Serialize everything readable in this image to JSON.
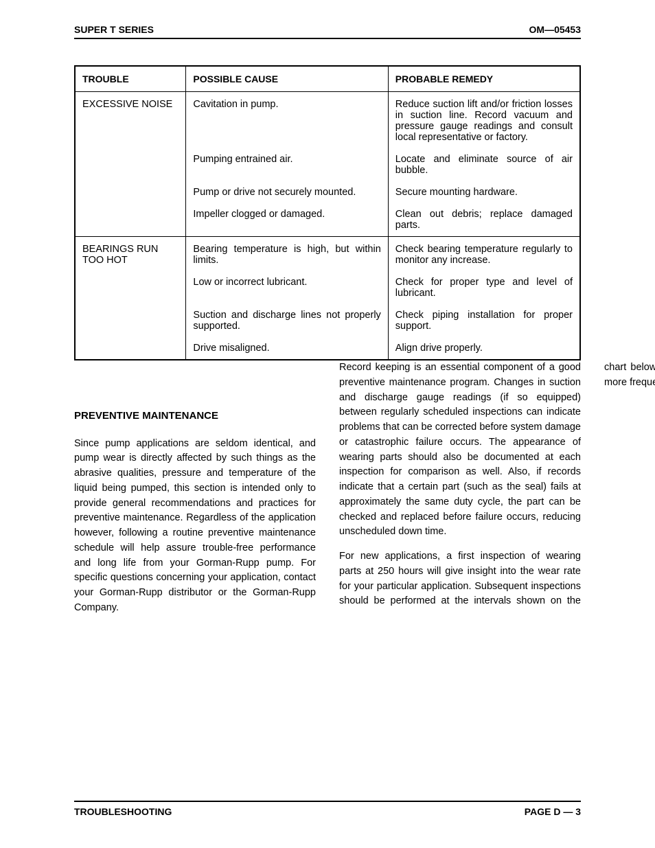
{
  "header": {
    "left": "SUPER T SERIES",
    "right": "OM—05453"
  },
  "table": {
    "cols": {
      "trouble": "TROUBLE",
      "cause": "POSSIBLE CAUSE",
      "remedy": "PROBABLE REMEDY"
    },
    "rows": [
      {
        "trouble": "EXCESSIVE NOISE",
        "cause": "Cavitation in pump.",
        "remedy": "Reduce suction lift and/or friction losses in suction line. Record vacuum and pressure gauge readings and consult local representative or factory.",
        "first": true
      },
      {
        "trouble": "",
        "cause": "Pumping entrained air.",
        "remedy": "Locate and eliminate source of air bubble."
      },
      {
        "trouble": "",
        "cause": "Pump or drive not securely mounted.",
        "remedy": "Secure mounting hardware."
      },
      {
        "trouble": "",
        "cause": "Impeller clogged or damaged.",
        "remedy": "Clean out debris; replace damaged parts."
      },
      {
        "trouble": "BEARINGS RUN TOO HOT",
        "cause": "Bearing temperature is high, but within limits.",
        "remedy": "Check bearing temperature regularly to monitor any increase.",
        "first": true
      },
      {
        "trouble": "",
        "cause": "Low or incorrect lubricant.",
        "remedy": "Check for proper type and level of lubricant."
      },
      {
        "trouble": "",
        "cause": "Suction and discharge lines not properly supported.",
        "remedy": "Check piping installation for proper support."
      },
      {
        "trouble": "",
        "cause": "Drive misaligned.",
        "remedy": "Align drive properly."
      }
    ]
  },
  "section": {
    "heading": "PREVENTIVE MAINTENANCE",
    "p1": "Since pump applications are seldom identical, and pump wear is directly affected by such things as the abrasive qualities, pressure and temperature of the liquid being pumped, this section is intended only to provide general recommendations and practices for preventive maintenance. Regardless of the application however, following a routine preventive maintenance schedule will help assure trouble-free performance and long life from your Gorman-Rupp pump. For specific questions concerning your application, contact your Gorman-Rupp distributor or the Gorman-Rupp Company.",
    "p2": "Record keeping is an essential component of a good preventive maintenance program. Changes in suction and discharge gauge readings (if so equipped) between regularly scheduled inspections can indicate problems that can be corrected before system damage or catastrophic failure occurs. The appearance of wearing parts should also be documented at each inspection for comparison as well. Also, if records indicate that a certain part (such as the seal) fails at approximately the same duty cycle, the part can be checked and replaced before failure occurs, reducing unscheduled down time.",
    "p3": "For new applications, a first inspection of wearing parts at 250 hours will give insight into the wear rate for your particular application. Subsequent inspections should be performed at the intervals shown on the chart below. Critical applications should be inspected more frequently."
  },
  "footer": {
    "left": "TROUBLESHOOTING",
    "right": "PAGE D — 3"
  }
}
